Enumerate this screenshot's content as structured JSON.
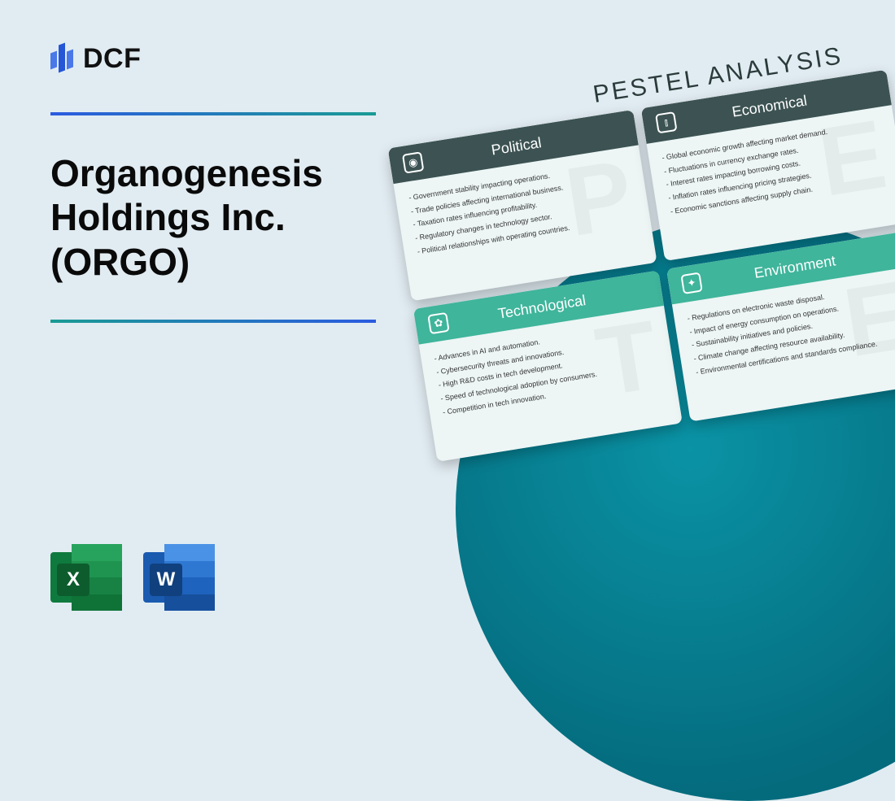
{
  "logo": {
    "text": "DCF"
  },
  "title": "Organogenesis Holdings Inc. (ORGO)",
  "icons": {
    "excel": {
      "letter": "X"
    },
    "word": {
      "letter": "W"
    }
  },
  "pestel": {
    "heading": "PESTEL ANALYSIS",
    "cards": [
      {
        "key": "political",
        "title": "Political",
        "watermark": "P",
        "header_color": "#3d5353",
        "icon_glyph": "◉",
        "items": [
          "Government stability impacting operations.",
          "Trade policies affecting international business.",
          "Taxation rates influencing profitability.",
          "Regulatory changes in technology sector.",
          "Political relationships with operating countries."
        ]
      },
      {
        "key": "economical",
        "title": "Economical",
        "watermark": "E",
        "header_color": "#3d5353",
        "icon_glyph": "⫾",
        "items": [
          "Global economic growth affecting market demand.",
          "Fluctuations in currency exchange rates.",
          "Interest rates impacting borrowing costs.",
          "Inflation rates influencing pricing strategies.",
          "Economic sanctions affecting supply chain."
        ]
      },
      {
        "key": "technological",
        "title": "Technological",
        "watermark": "T",
        "header_color": "#3fb59b",
        "icon_glyph": "✿",
        "items": [
          "Advances in AI and automation.",
          "Cybersecurity threats and innovations.",
          "High R&D costs in tech development.",
          "Speed of technological adoption by consumers.",
          "Competition in tech innovation."
        ]
      },
      {
        "key": "environment",
        "title": "Environment",
        "watermark": "E",
        "header_color": "#3fb59b",
        "icon_glyph": "✦",
        "items": [
          "Regulations on electronic waste disposal.",
          "Impact of energy consumption on operations.",
          "Sustainability initiatives and policies.",
          "Climate change affecting resource availability.",
          "Environmental certifications and standards compliance."
        ]
      }
    ]
  }
}
